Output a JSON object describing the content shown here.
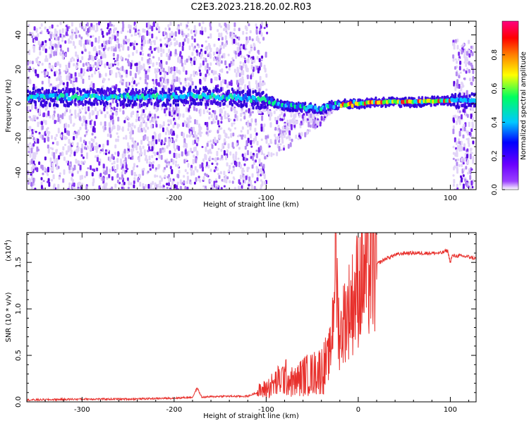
{
  "title": "C2E3.2023.218.20.02.R03",
  "colors": {
    "snr_line": "#e8302c",
    "spectrum_low": "#d9c8f5",
    "spectrum_mid": "#6a00e8",
    "spectrum_high": "#00e0ff",
    "colormap": [
      "#ffffff",
      "#7a00ff",
      "#0000ff",
      "#00c8ff",
      "#00ff60",
      "#ffff00",
      "#ff8000",
      "#ff0000",
      "#ff0080"
    ]
  },
  "chart_data": [
    {
      "type": "heatmap",
      "xlabel": "Height of straight line (km)",
      "ylabel": "Frequency (Hz)",
      "xlim": [
        -360,
        128
      ],
      "ylim": [
        -50,
        48
      ],
      "xticks": [
        -300,
        -200,
        -100,
        0,
        100
      ],
      "yticks": [
        -40,
        -20,
        0,
        20,
        40
      ],
      "colorbar": {
        "label": "Normalized spectral amplitude",
        "range": [
          0,
          1
        ],
        "ticks": [
          0.0,
          0.2,
          0.4,
          0.6,
          0.8
        ]
      },
      "ridge": {
        "x": [
          -360,
          -330,
          -300,
          -270,
          -240,
          -210,
          -180,
          -150,
          -120,
          -100,
          -80,
          -60,
          -40,
          -30,
          -20,
          0,
          20,
          60,
          100,
          128
        ],
        "y": [
          4,
          4,
          4,
          4,
          4,
          4,
          5,
          4,
          3,
          2,
          -1,
          -2,
          -3,
          -1,
          0,
          0,
          1,
          1,
          2,
          2
        ]
      },
      "noise_regions": [
        {
          "x": [
            -360,
            -100
          ],
          "y": [
            -50,
            48
          ],
          "level": "high"
        },
        {
          "x": [
            -100,
            -25
          ],
          "y": [
            -35,
            6
          ],
          "level": "medium"
        },
        {
          "x": [
            102,
            124
          ],
          "y": [
            -50,
            38
          ],
          "level": "high"
        }
      ],
      "grid": false
    },
    {
      "type": "line",
      "xlabel": "Height of straight line (km)",
      "ylabel": "SNR (10 * v/v)",
      "yexponent": "(x10",
      "yexponent_power": "4",
      "yexponent_close": ")",
      "xlim": [
        -360,
        128
      ],
      "ylim": [
        0,
        1.82
      ],
      "xticks": [
        -300,
        -200,
        -100,
        0,
        100
      ],
      "yticks": [
        0.0,
        0.5,
        1.0,
        1.5
      ],
      "ytick_labels": [
        "0.0",
        "0.5",
        "1.0",
        "1.5"
      ],
      "series": [
        {
          "x": [
            -360,
            -300,
            -250,
            -200,
            -180,
            -175,
            -170,
            -150,
            -120,
            -110,
            -100,
            -90,
            -80,
            -70,
            -60,
            -50,
            -40,
            -35,
            -30,
            -27,
            -25,
            -22,
            -20,
            -15,
            -10,
            -5,
            0,
            10,
            20,
            30,
            40,
            50,
            60,
            70,
            80,
            90,
            97,
            100,
            102,
            110,
            120,
            128
          ],
          "y": [
            0.02,
            0.03,
            0.03,
            0.04,
            0.05,
            0.15,
            0.05,
            0.06,
            0.06,
            0.1,
            0.14,
            0.2,
            0.27,
            0.2,
            0.28,
            0.3,
            0.35,
            0.4,
            0.55,
            1.0,
            1.85,
            0.9,
            0.7,
            0.9,
            1.0,
            1.1,
            1.25,
            1.38,
            1.48,
            1.54,
            1.58,
            1.6,
            1.6,
            1.6,
            1.6,
            1.6,
            1.63,
            1.5,
            1.57,
            1.57,
            1.56,
            1.54
          ]
        }
      ],
      "grid": false
    }
  ]
}
